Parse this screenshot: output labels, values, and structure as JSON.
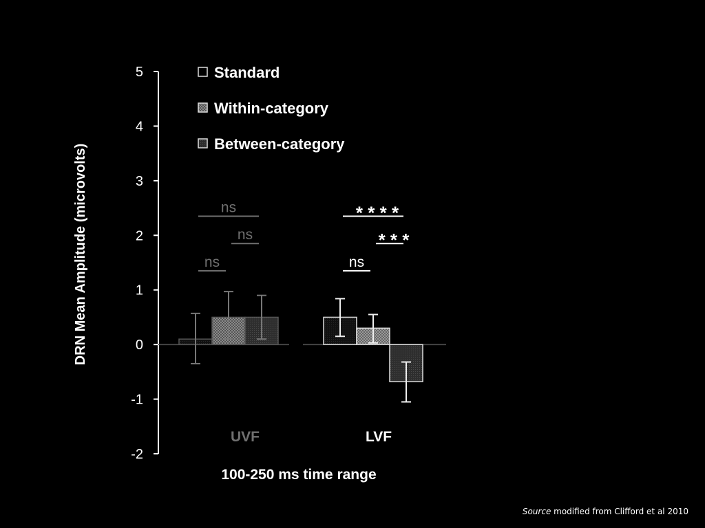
{
  "chart_data": {
    "type": "bar",
    "ylabel": "DRN Mean Amplitude (microvolts)",
    "xlabel": "100-250 ms time range",
    "ylim": [
      -2,
      5
    ],
    "yticks": [
      5,
      4,
      3,
      2,
      1,
      0,
      -1,
      -2
    ],
    "groups": [
      {
        "label": "UVF",
        "color": "#707070"
      },
      {
        "label": "LVF",
        "color": "#ffffff"
      }
    ],
    "series": [
      {
        "name": "Standard",
        "values": [
          0.1,
          0.5
        ],
        "err_low": [
          -0.35,
          0.15
        ],
        "err_high": [
          0.57,
          0.84
        ]
      },
      {
        "name": "Within-category",
        "values": [
          0.5,
          0.3
        ],
        "err_low": [
          0.1,
          0.03
        ],
        "err_high": [
          0.97,
          0.55
        ]
      },
      {
        "name": "Between-category",
        "values": [
          0.5,
          -0.68
        ],
        "err_low": [
          0.1,
          -1.05
        ],
        "err_high": [
          0.9,
          -0.32
        ]
      }
    ],
    "annotations": [
      {
        "text": "ns",
        "group": 0,
        "from": 0,
        "to": 1,
        "y": 1.35,
        "color": "#707070"
      },
      {
        "text": "ns",
        "group": 0,
        "from": 0,
        "to": 2,
        "y": 2.35,
        "color": "#707070"
      },
      {
        "text": "ns",
        "group": 0,
        "from": 1,
        "to": 2,
        "y": 1.85,
        "color": "#707070"
      },
      {
        "text": "ns",
        "group": 1,
        "from": 0,
        "to": 1,
        "y": 1.35,
        "color": "#ffffff"
      },
      {
        "text": "* * * *",
        "group": 1,
        "from": 0,
        "to": 2,
        "y": 2.35,
        "color": "#ffffff"
      },
      {
        "text": "* * *",
        "group": 1,
        "from": 1,
        "to": 2,
        "y": 1.85,
        "color": "#ffffff"
      }
    ],
    "legend_position": "top-left"
  },
  "source_note": {
    "italic": "Source",
    "rest": " modified from Clifford et al 2010"
  }
}
